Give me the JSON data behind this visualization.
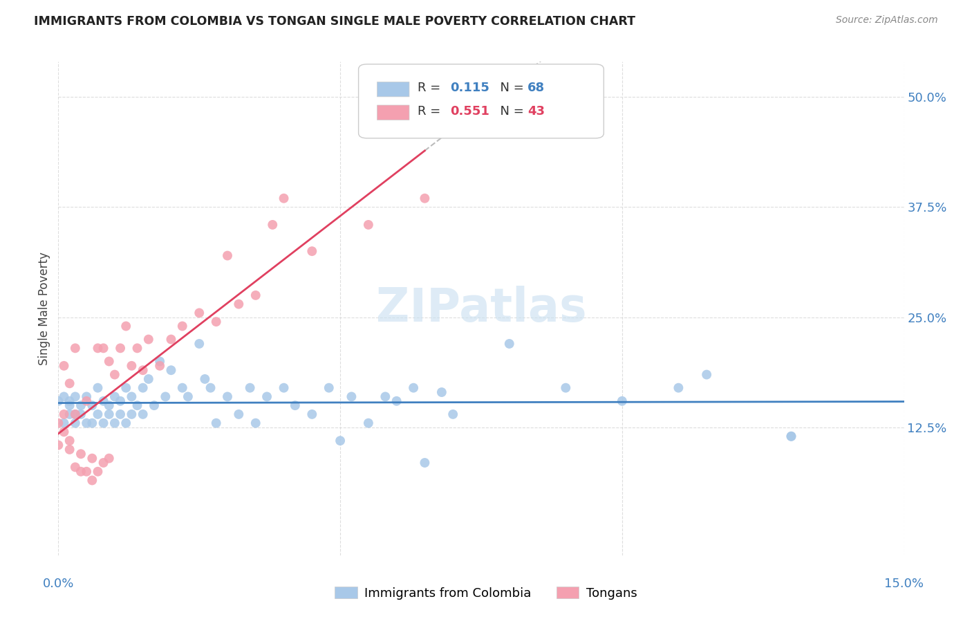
{
  "title": "IMMIGRANTS FROM COLOMBIA VS TONGAN SINGLE MALE POVERTY CORRELATION CHART",
  "source": "Source: ZipAtlas.com",
  "ylabel": "Single Male Poverty",
  "color_blue": "#a8c8e8",
  "color_pink": "#f4a0b0",
  "color_blue_text": "#4080c0",
  "color_pink_text": "#e04060",
  "color_blue_line": "#4080c0",
  "color_pink_line": "#e04060",
  "color_gray_dash": "#bbbbbb",
  "watermark_color": "#c8dff0",
  "xlim": [
    0.0,
    0.15
  ],
  "ylim": [
    -0.02,
    0.54
  ],
  "yticks": [
    0.125,
    0.25,
    0.375,
    0.5
  ],
  "ytick_labels": [
    "12.5%",
    "25.0%",
    "37.5%",
    "50.0%"
  ],
  "xtick_labels": [
    "0.0%",
    "15.0%"
  ],
  "colombia_x": [
    0.0,
    0.001,
    0.001,
    0.002,
    0.002,
    0.002,
    0.003,
    0.003,
    0.003,
    0.004,
    0.004,
    0.005,
    0.005,
    0.006,
    0.006,
    0.007,
    0.007,
    0.008,
    0.008,
    0.009,
    0.009,
    0.01,
    0.01,
    0.011,
    0.011,
    0.012,
    0.012,
    0.013,
    0.013,
    0.014,
    0.015,
    0.015,
    0.016,
    0.017,
    0.018,
    0.019,
    0.02,
    0.022,
    0.023,
    0.025,
    0.026,
    0.027,
    0.028,
    0.03,
    0.032,
    0.034,
    0.035,
    0.037,
    0.04,
    0.042,
    0.045,
    0.048,
    0.05,
    0.052,
    0.055,
    0.058,
    0.06,
    0.063,
    0.065,
    0.068,
    0.07,
    0.08,
    0.09,
    0.1,
    0.11,
    0.115,
    0.13,
    0.13
  ],
  "colombia_y": [
    0.155,
    0.16,
    0.13,
    0.15,
    0.14,
    0.155,
    0.14,
    0.16,
    0.13,
    0.15,
    0.14,
    0.13,
    0.16,
    0.15,
    0.13,
    0.14,
    0.17,
    0.155,
    0.13,
    0.15,
    0.14,
    0.16,
    0.13,
    0.155,
    0.14,
    0.17,
    0.13,
    0.16,
    0.14,
    0.15,
    0.17,
    0.14,
    0.18,
    0.15,
    0.2,
    0.16,
    0.19,
    0.17,
    0.16,
    0.22,
    0.18,
    0.17,
    0.13,
    0.16,
    0.14,
    0.17,
    0.13,
    0.16,
    0.17,
    0.15,
    0.14,
    0.17,
    0.11,
    0.16,
    0.13,
    0.16,
    0.155,
    0.17,
    0.085,
    0.165,
    0.14,
    0.22,
    0.17,
    0.155,
    0.17,
    0.185,
    0.115,
    0.115
  ],
  "tongan_x": [
    0.0,
    0.0,
    0.001,
    0.001,
    0.001,
    0.002,
    0.002,
    0.002,
    0.003,
    0.003,
    0.003,
    0.004,
    0.004,
    0.005,
    0.005,
    0.006,
    0.006,
    0.007,
    0.007,
    0.008,
    0.008,
    0.009,
    0.009,
    0.01,
    0.011,
    0.012,
    0.013,
    0.014,
    0.015,
    0.016,
    0.018,
    0.02,
    0.022,
    0.025,
    0.028,
    0.03,
    0.032,
    0.035,
    0.038,
    0.04,
    0.045,
    0.055,
    0.065
  ],
  "tongan_y": [
    0.13,
    0.105,
    0.14,
    0.195,
    0.12,
    0.175,
    0.1,
    0.11,
    0.14,
    0.08,
    0.215,
    0.075,
    0.095,
    0.155,
    0.075,
    0.065,
    0.09,
    0.075,
    0.215,
    0.085,
    0.215,
    0.2,
    0.09,
    0.185,
    0.215,
    0.24,
    0.195,
    0.215,
    0.19,
    0.225,
    0.195,
    0.225,
    0.24,
    0.255,
    0.245,
    0.32,
    0.265,
    0.275,
    0.355,
    0.385,
    0.325,
    0.355,
    0.385
  ]
}
